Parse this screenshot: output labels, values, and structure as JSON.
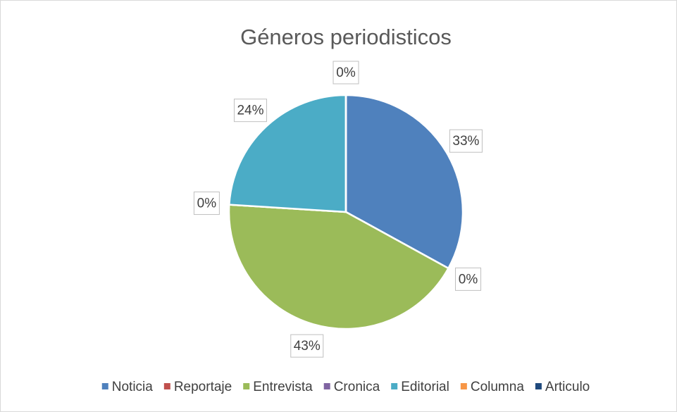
{
  "chart_data": {
    "type": "pie",
    "title": "Géneros periodisticos",
    "categories": [
      "Noticia",
      "Reportaje",
      "Entrevista",
      "Cronica",
      "Editorial",
      "Columna",
      "Articulo"
    ],
    "values": [
      33,
      0,
      43,
      0,
      24,
      0,
      0
    ],
    "value_labels": [
      "33%",
      "0%",
      "43%",
      "0%",
      "24%",
      "0%",
      "0%"
    ],
    "colors": [
      "#4f81bd",
      "#c0504d",
      "#9bbb59",
      "#8064a2",
      "#4bacc6",
      "#f79646",
      "#1f497d"
    ],
    "legend": "bottom"
  }
}
